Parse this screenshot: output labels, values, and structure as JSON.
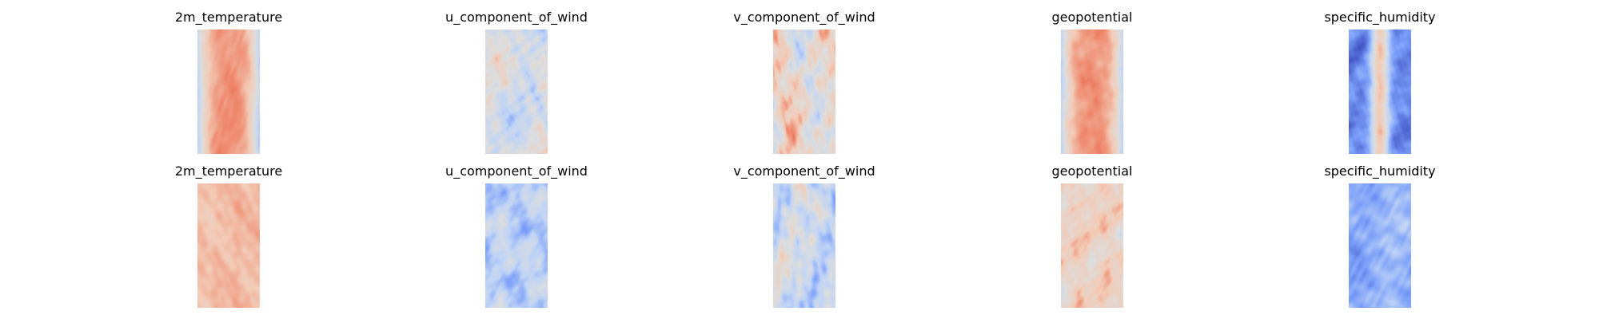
{
  "figure": {
    "rows": [
      {
        "row": "top",
        "panels": [
          {
            "title": "2m_temperature",
            "pattern": "warm-band",
            "seed": 11
          },
          {
            "title": "u_component_of_wind",
            "pattern": "wind",
            "seed": 23
          },
          {
            "title": "v_component_of_wind",
            "pattern": "wind-noisy",
            "seed": 37
          },
          {
            "title": "geopotential",
            "pattern": "warm-band",
            "seed": 41
          },
          {
            "title": "specific_humidity",
            "pattern": "humidity-band",
            "seed": 53
          }
        ]
      },
      {
        "row": "bottom",
        "panels": [
          {
            "title": "2m_temperature",
            "pattern": "warm-uniform",
            "seed": 61
          },
          {
            "title": "u_component_of_wind",
            "pattern": "wind-cool",
            "seed": 73
          },
          {
            "title": "v_component_of_wind",
            "pattern": "wind-cool-noisy",
            "seed": 89
          },
          {
            "title": "geopotential",
            "pattern": "warm-patchy",
            "seed": 97
          },
          {
            "title": "specific_humidity",
            "pattern": "cool-uniform",
            "seed": 101
          }
        ]
      }
    ],
    "colormap": "coolwarm",
    "colormap_stops": [
      "#3b4cc0",
      "#7b9ff9",
      "#c0d4f5",
      "#dddddd",
      "#f2cbb7",
      "#ee8468",
      "#b40426"
    ]
  },
  "chart_data": {
    "type": "heatmap",
    "colormap": "coolwarm",
    "layout": "2 rows x 5 columns",
    "panels": [
      {
        "row": 1,
        "col": 1,
        "title": "2m_temperature"
      },
      {
        "row": 1,
        "col": 2,
        "title": "u_component_of_wind"
      },
      {
        "row": 1,
        "col": 3,
        "title": "v_component_of_wind"
      },
      {
        "row": 1,
        "col": 4,
        "title": "geopotential"
      },
      {
        "row": 1,
        "col": 5,
        "title": "specific_humidity"
      },
      {
        "row": 2,
        "col": 1,
        "title": "2m_temperature"
      },
      {
        "row": 2,
        "col": 2,
        "title": "u_component_of_wind"
      },
      {
        "row": 2,
        "col": 3,
        "title": "v_component_of_wind"
      },
      {
        "row": 2,
        "col": 4,
        "title": "geopotential"
      },
      {
        "row": 2,
        "col": 5,
        "title": "specific_humidity"
      }
    ],
    "axes": "off",
    "legend": "none"
  }
}
